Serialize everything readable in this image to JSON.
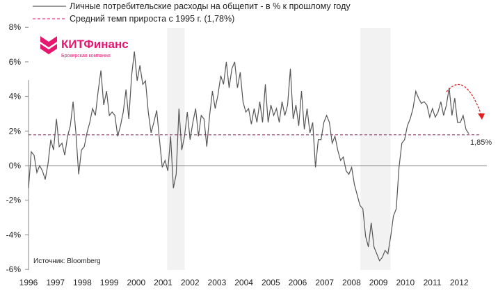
{
  "chart_data": {
    "type": "line",
    "title": "",
    "xlabel": "",
    "ylabel": "",
    "xlim": [
      1996,
      2013
    ],
    "ylim": [
      -6,
      8
    ],
    "x_ticks": [
      "1996",
      "1997",
      "1998",
      "1999",
      "2000",
      "2001",
      "2002",
      "2003",
      "2004",
      "2005",
      "2006",
      "2007",
      "2008",
      "2009",
      "2010",
      "2011",
      "2012"
    ],
    "y_ticks": [
      "-6%",
      "-4%",
      "-2%",
      "0%",
      "2%",
      "4%",
      "6%",
      "8%"
    ],
    "y_tick_values": [
      -6,
      -4,
      -2,
      0,
      2,
      4,
      6,
      8
    ],
    "legend": [
      {
        "label": "Личные потребительские расходы на общепит - в % к прошлому году",
        "color": "#555555",
        "style": "solid"
      },
      {
        "label": "Средний темп прироста с 1995 г. (1,78%)",
        "color": "#c2185b",
        "style": "dashed"
      }
    ],
    "legend_position": "top",
    "average_value": 1.78,
    "shaded_periods": [
      [
        2001.15,
        2001.8
      ],
      [
        2008.33,
        2009.45
      ]
    ],
    "series": [
      {
        "name": "Личные потребительские расходы на общепит - в % к прошлому году",
        "x_start": 1996.0,
        "x_step": 0.1035,
        "values": [
          -1.3,
          0.8,
          0.6,
          -0.4,
          0,
          -0.3,
          -0.8,
          0.1,
          1.5,
          0.9,
          2.7,
          1.1,
          1.3,
          0.6,
          1.7,
          2.3,
          3.7,
          1.9,
          -0.5,
          0.9,
          1.1,
          1.9,
          2.5,
          3.3,
          2.9,
          4.3,
          5.5,
          3.5,
          4.3,
          2.9,
          3.1,
          2.9,
          1.7,
          2.3,
          3.1,
          4.4,
          2.7,
          5.2,
          6.6,
          4.9,
          5.8,
          4.7,
          4.9,
          3.1,
          1.9,
          2.5,
          3.2,
          1.5,
          -0.1,
          0.3,
          -0.3,
          1.7,
          -1.3,
          -0.5,
          3.3,
          0.9,
          1.7,
          3.1,
          1.5,
          2.5,
          3.3,
          1.7,
          2.9,
          2.7,
          1.1,
          2.9,
          4.3,
          3.3,
          4.1,
          5.2,
          4.7,
          6.0,
          4.5,
          5.6,
          6.0,
          4.5,
          5.4,
          3.7,
          3.1,
          3.3,
          2.4,
          3.3,
          2.5,
          3.7,
          2.5,
          4.7,
          2.5,
          3.5,
          2.9,
          3.3,
          2.5,
          3.7,
          2.9,
          3.5,
          5.6,
          2.7,
          3.5,
          2.3,
          4.3,
          2.1,
          3.3,
          1.9,
          2.5,
          -0.1,
          1.5,
          1.5,
          2.5,
          2.9,
          2.5,
          1.3,
          1.7,
          0.9,
          0.3,
          0.5,
          -0.3,
          -0.5,
          -0.1,
          -1.1,
          -1.7,
          -2.3,
          -2.5,
          -4.1,
          -4.7,
          -3.3,
          -4.7,
          -5.1,
          -5.5,
          -5.3,
          -4.9,
          -5.1,
          -4.1,
          -2.9,
          -2.5,
          -0.1,
          1.3,
          1.5,
          2.3,
          2.7,
          3.3,
          4.3,
          3.9,
          3.6,
          3.7,
          3.5,
          2.8,
          3.3,
          2.8,
          3.1,
          3.7,
          2.9,
          3.5,
          4.5,
          2.9,
          3.9,
          2.5,
          2.5,
          2.9,
          2.1,
          1.85
        ]
      }
    ],
    "annotations": [
      {
        "text": "1,85%",
        "x": 2012.67,
        "y": 1.85
      },
      {
        "text": "Источник: Bloomberg",
        "position": "bottom-left"
      }
    ]
  },
  "logo": {
    "name": "КИТФинанс",
    "subtitle": "Брокерская компания",
    "color": "#e6176f"
  }
}
